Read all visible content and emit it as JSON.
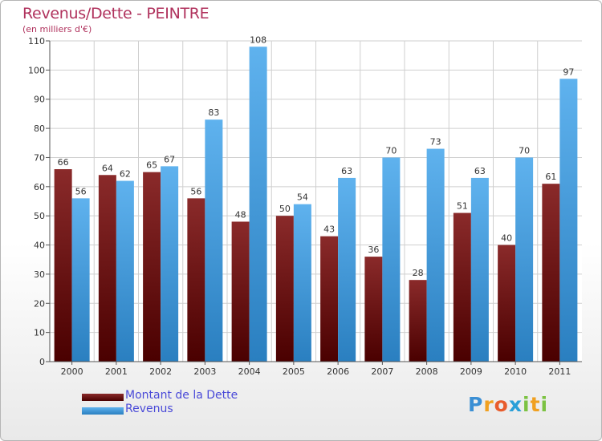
{
  "chart_data": {
    "type": "bar",
    "title": "Revenus/Dette - PEINTRE",
    "subtitle": "(en milliers d'€)",
    "categories": [
      "2000",
      "2001",
      "2002",
      "2003",
      "2004",
      "2005",
      "2006",
      "2007",
      "2008",
      "2009",
      "2010",
      "2011"
    ],
    "series": [
      {
        "name": "Montant de la Dette",
        "values": [
          66,
          64,
          65,
          56,
          48,
          50,
          43,
          36,
          28,
          51,
          40,
          61
        ],
        "color": "#7a1a1a"
      },
      {
        "name": "Revenus",
        "values": [
          56,
          62,
          67,
          83,
          108,
          54,
          63,
          70,
          73,
          63,
          70,
          97
        ],
        "color": "#4ea6e6"
      }
    ],
    "ylim": [
      0,
      110
    ],
    "yticks": [
      0,
      10,
      20,
      30,
      40,
      50,
      60,
      70,
      80,
      90,
      100,
      110
    ],
    "grid": true,
    "legend": "bottom-left"
  },
  "logo": {
    "text": "Proxiti",
    "letters": [
      {
        "ch": "P",
        "color": "#3b8fd4"
      },
      {
        "ch": "r",
        "color": "#f0a020"
      },
      {
        "ch": "o",
        "color": "#e85c2c"
      },
      {
        "ch": "x",
        "color": "#2a9fd8"
      },
      {
        "ch": "i",
        "color": "#7cc242"
      },
      {
        "ch": "t",
        "color": "#f0a020"
      },
      {
        "ch": "i",
        "color": "#7cc242"
      }
    ]
  }
}
